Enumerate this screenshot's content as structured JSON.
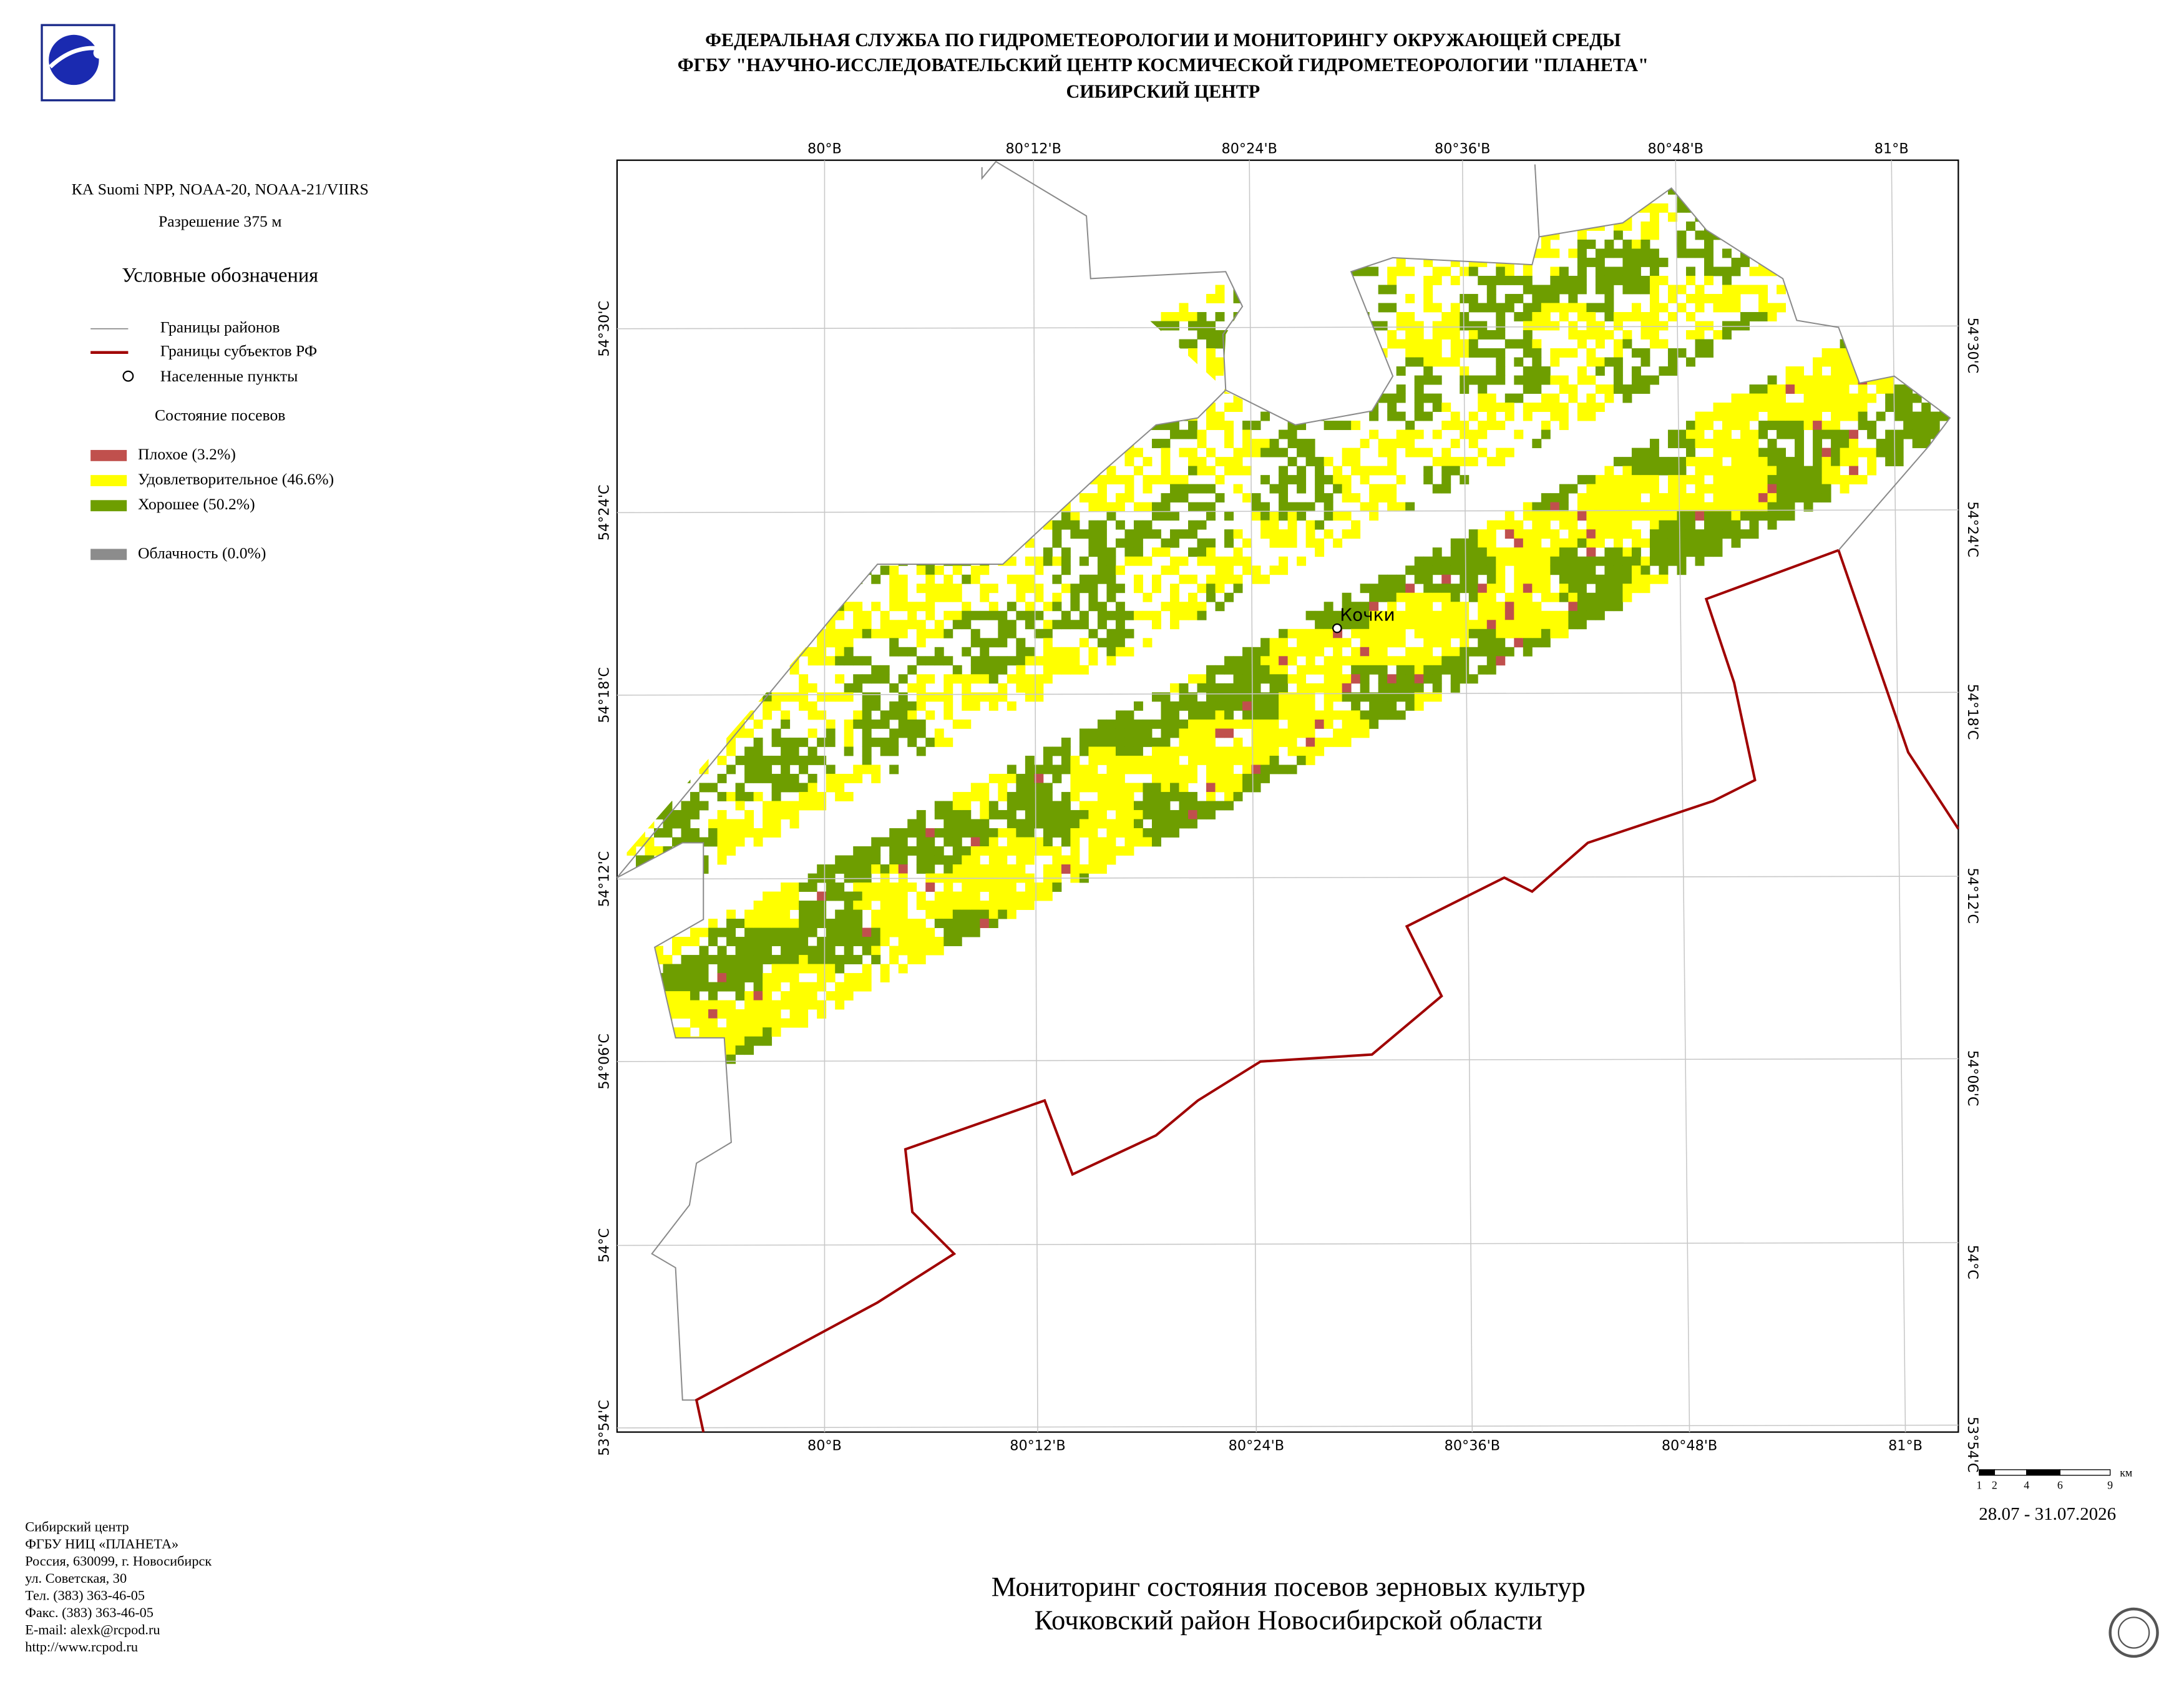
{
  "header": {
    "lines": [
      "ФЕДЕРАЛЬНАЯ СЛУЖБА ПО ГИДРОМЕТЕОРОЛОГИИ И МОНИТОРИНГУ ОКРУЖАЮЩЕЙ СРЕДЫ",
      "ФГБУ \"НАУЧНО-ИССЛЕДОВАТЕЛЬСКИЙ ЦЕНТР КОСМИЧЕСКОЙ ГИДРОМЕТЕОРОЛОГИИ \"ПЛАНЕТА\"",
      "СИБИРСКИЙ ЦЕНТР"
    ]
  },
  "left_panel": {
    "satellite": "КА Suomi NPP, NOAA-20, NOAA-21/VIIRS",
    "resolution": "Разрешение 375 м",
    "legend_title": "Условные обозначения",
    "boundaries": [
      {
        "label": "Границы районов",
        "color": "#8a8a8a"
      },
      {
        "label": "Границы субъектов РФ",
        "color": "#a00000"
      },
      {
        "label": "Населенные пункты"
      }
    ],
    "crop_title": "Состояние посевов",
    "crop_classes": [
      {
        "label": "Плохое (3.2%)",
        "color": "#c0504d"
      },
      {
        "label": "Удовлетворительное (46.6%)",
        "color": "#ffff00"
      },
      {
        "label": "Хорошее (50.2%)",
        "color": "#6e9e00"
      }
    ],
    "cloud": {
      "label": "Облачность (0.0%)",
      "color": "#8c8c8c"
    }
  },
  "map": {
    "lon_labels": [
      "80°В",
      "80°12'В",
      "80°24'В",
      "80°36'В",
      "80°48'В",
      "81°В"
    ],
    "lat_labels": [
      "54°30'С",
      "54°24'С",
      "54°18'С",
      "54°12'С",
      "54°06'С",
      "54°С",
      "53°54'С"
    ],
    "settlement": "Кочки"
  },
  "scale_bar": {
    "labels": [
      "1",
      "2",
      "4",
      "6",
      "9"
    ],
    "unit": "км"
  },
  "date": "28.07 - 31.07.2026",
  "title": {
    "lines": [
      "Мониторинг состояния посевов зерновых культур",
      "Кочковский район Новосибирской области"
    ]
  },
  "address": {
    "lines": [
      "Сибирский центр",
      "ФГБУ НИЦ «ПЛАНЕТА»",
      "Россия, 630099, г. Новосибирск",
      "ул. Советская, 30",
      "Тел. (383) 363-46-05",
      "Факс. (383) 363-46-05",
      "E-mail: alexk@rcpod.ru",
      "http://www.rcpod.ru"
    ]
  }
}
